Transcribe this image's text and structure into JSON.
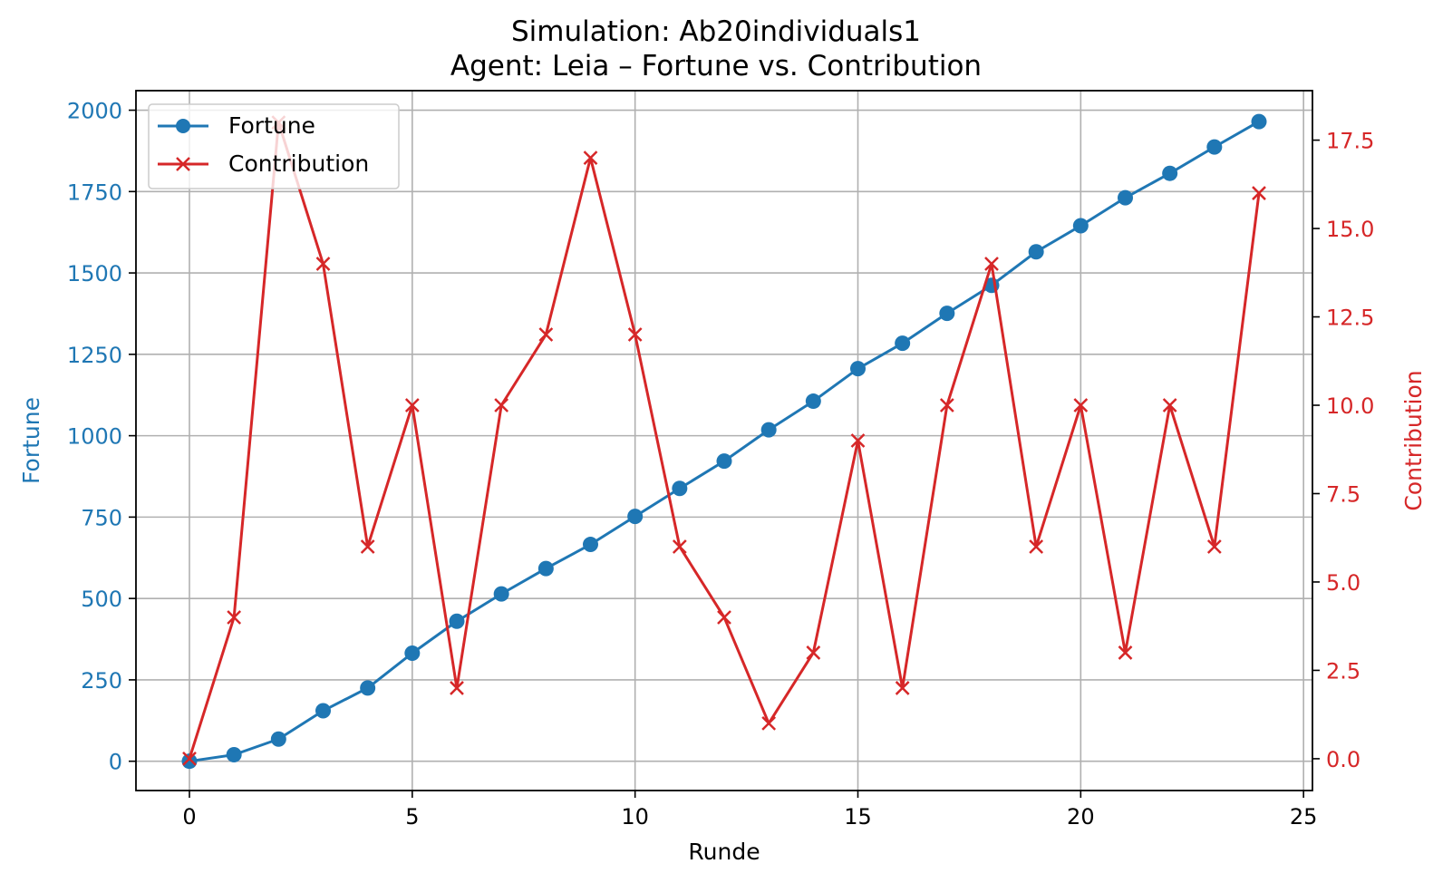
{
  "chart_data": {
    "type": "line",
    "title": "Simulation: Ab20individuals1",
    "subtitle": "Agent: Leia – Fortune vs. Contribution",
    "xlabel": "Runde",
    "ylabel": "Fortune",
    "y2label": "Contribution",
    "xlim": [
      -1.2,
      25.2
    ],
    "ylim": [
      -90,
      2060
    ],
    "y2lim": [
      -0.9,
      18.9
    ],
    "xticks": [
      0,
      5,
      10,
      15,
      20,
      25
    ],
    "yticks": [
      0,
      250,
      500,
      750,
      1000,
      1250,
      1500,
      1750,
      2000
    ],
    "y2ticks": [
      "0.0",
      "2.5",
      "5.0",
      "7.5",
      "10.0",
      "12.5",
      "15.0",
      "17.5"
    ],
    "grid": true,
    "legend_position": "upper-left",
    "x": [
      0,
      1,
      2,
      3,
      4,
      5,
      6,
      7,
      8,
      9,
      10,
      11,
      12,
      13,
      14,
      15,
      16,
      17,
      18,
      19,
      20,
      21,
      22,
      23,
      24
    ],
    "series": [
      {
        "name": "Fortune",
        "axis": "left",
        "marker": "circle",
        "color": "#1f77b4",
        "values": [
          0,
          20,
          68,
          155,
          225,
          332,
          430,
          514,
          592,
          666,
          752,
          838,
          922,
          1018,
          1106,
          1206,
          1284,
          1376,
          1462,
          1565,
          1645,
          1731,
          1806,
          1887,
          1965
        ]
      },
      {
        "name": "Contribution",
        "axis": "right",
        "marker": "x",
        "color": "#d62728",
        "values": [
          0,
          4,
          18,
          14,
          6,
          10,
          2,
          10,
          12,
          17,
          12,
          6,
          4,
          1,
          3,
          9,
          2,
          10,
          14,
          6,
          10,
          3,
          10,
          6,
          16
        ]
      }
    ]
  }
}
